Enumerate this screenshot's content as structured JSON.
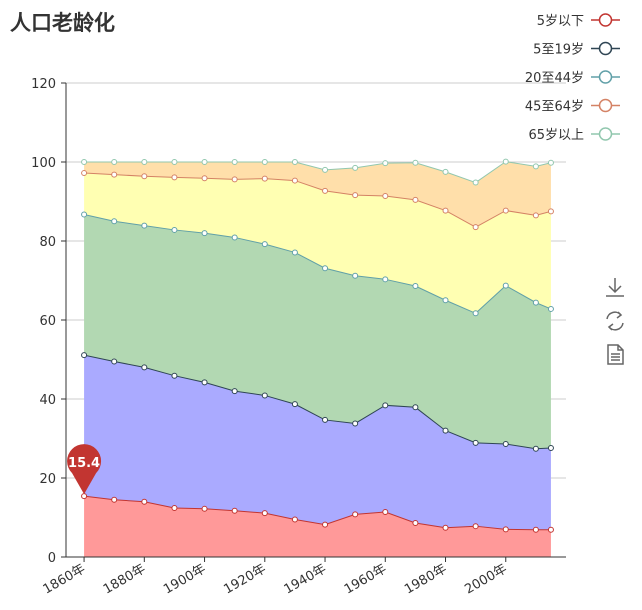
{
  "chart_data": {
    "type": "area",
    "stacked": true,
    "title": "人口老龄化",
    "x": [
      1860,
      1870,
      1880,
      1890,
      1900,
      1910,
      1920,
      1930,
      1940,
      1950,
      1960,
      1970,
      1980,
      1990,
      2000,
      2010,
      2015
    ],
    "x_tick_labels": [
      "1860年",
      "1880年",
      "1900年",
      "1920年",
      "1940年",
      "1960年",
      "1980年",
      "2000年"
    ],
    "y_ticks": [
      0,
      20,
      40,
      60,
      80,
      100,
      120
    ],
    "ylim": [
      0,
      120
    ],
    "grid": true,
    "legend_position": "top-right",
    "series": [
      {
        "name": "5岁以下",
        "color": "#c23531",
        "fill": "#ff9999",
        "values": [
          15.4,
          14.5,
          14.0,
          12.4,
          12.2,
          11.7,
          11.1,
          9.5,
          8.2,
          10.8,
          11.4,
          8.6,
          7.4,
          7.8,
          7.0,
          6.9,
          6.9
        ]
      },
      {
        "name": "5至19岁",
        "color": "#2f4554",
        "fill": "#aaaaff",
        "values": [
          35.7,
          35.0,
          34.0,
          33.5,
          32.0,
          30.3,
          29.8,
          29.2,
          26.5,
          23.0,
          27.0,
          29.3,
          24.6,
          21.1,
          21.6,
          20.5,
          20.7
        ]
      },
      {
        "name": "20至44岁",
        "color": "#61a0a8",
        "fill": "#b2d8b2",
        "values": [
          35.6,
          35.5,
          35.9,
          36.9,
          37.8,
          38.9,
          38.3,
          38.4,
          38.4,
          37.4,
          31.9,
          30.7,
          33.0,
          32.8,
          40.1,
          37.0,
          35.2
        ]
      },
      {
        "name": "45至64岁",
        "color": "#d48265",
        "fill": "#ffffb2",
        "values": [
          10.5,
          11.8,
          12.5,
          13.3,
          13.9,
          14.7,
          16.6,
          18.2,
          19.6,
          20.4,
          21.1,
          21.8,
          22.7,
          21.8,
          19.0,
          22.1,
          24.7
        ]
      },
      {
        "name": "65岁以上",
        "color": "#91c7ae",
        "fill": "#ffdfaa",
        "values": [
          2.8,
          3.2,
          3.6,
          3.9,
          4.1,
          4.4,
          4.2,
          4.7,
          5.3,
          6.9,
          8.3,
          9.4,
          9.8,
          11.3,
          12.4,
          12.4,
          12.3
        ]
      }
    ],
    "highlight": {
      "series_index": 0,
      "point_index": 0,
      "label": "15.4"
    }
  },
  "toolbox": {
    "icons": [
      "download-icon",
      "refresh-icon",
      "data-view-icon"
    ]
  }
}
